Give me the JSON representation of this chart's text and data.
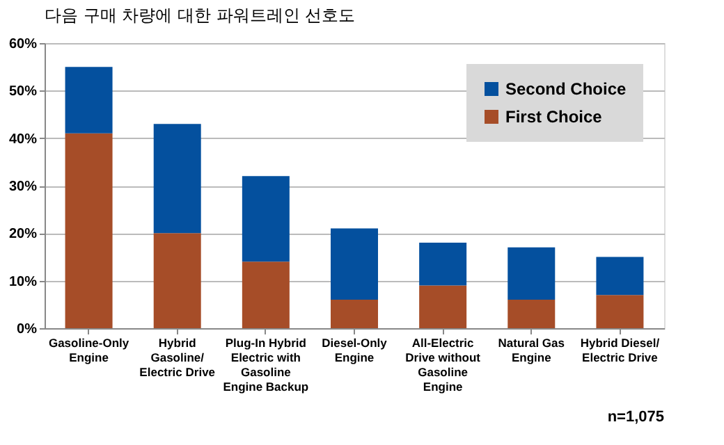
{
  "chart_data": {
    "type": "bar",
    "stacked": true,
    "title": "다음 구매 차량에 대한 파워트레인 선호도",
    "categories": [
      "Gasoline-Only Engine",
      "Hybrid Gasoline/ Electric Drive",
      "Plug-In Hybrid Electric with Gasoline Engine Backup",
      "Diesel-Only Engine",
      "All-Electric Drive without Gasoline Engine",
      "Natural Gas Engine",
      "Hybrid Diesel/Electric Drive"
    ],
    "series": [
      {
        "name": "First Choice",
        "color": "#a64d28",
        "values": [
          41,
          20,
          14,
          6,
          9,
          6,
          7
        ]
      },
      {
        "name": "Second Choice",
        "color": "#04509e",
        "values": [
          14,
          23,
          18,
          15,
          9,
          11,
          8
        ]
      }
    ],
    "ylim": [
      0,
      60
    ],
    "yticks": [
      {
        "value": 0,
        "label": "0%"
      },
      {
        "value": 10,
        "label": "10%"
      },
      {
        "value": 20,
        "label": "20%"
      },
      {
        "value": 30,
        "label": "30%"
      },
      {
        "value": 40,
        "label": "40%"
      },
      {
        "value": 50,
        "label": "50%"
      },
      {
        "value": 60,
        "label": "60%"
      }
    ],
    "grid": "y",
    "legend": "top right",
    "annotations": [
      "n=1,075"
    ]
  }
}
